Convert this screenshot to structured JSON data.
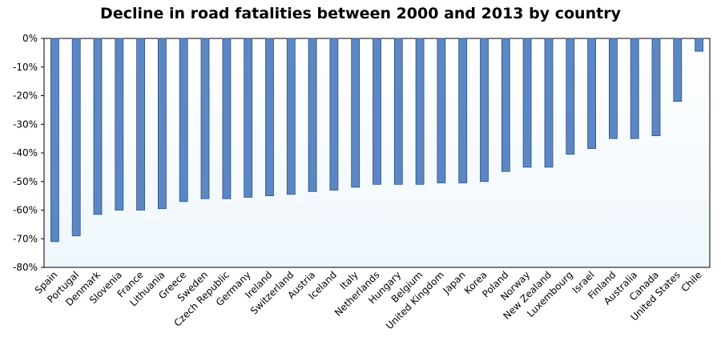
{
  "chart_data": {
    "type": "bar",
    "title": "Decline in road fatalities between 2000 and 2013 by country",
    "xlabel": "",
    "ylabel": "",
    "ylim": [
      -80,
      0
    ],
    "yticks": [
      "0%",
      "-10%",
      "-20%",
      "-30%",
      "-40%",
      "-50%",
      "-60%",
      "-70%",
      "-80%"
    ],
    "ytick_values": [
      0,
      -10,
      -20,
      -30,
      -40,
      -50,
      -60,
      -70,
      -80
    ],
    "grid": false,
    "colors": {
      "bar": "#5b87c5",
      "bar_stroke": "#2f4f7f",
      "plot_bg_top": "#ffffff",
      "plot_bg_bottom": "#eef7fc",
      "axis": "#000000"
    },
    "categories": [
      "Spain",
      "Portugal",
      "Denmark",
      "Slovenia",
      "France",
      "Lithuania",
      "Greece",
      "Sweden",
      "Czech Republic",
      "Germany",
      "Ireland",
      "Switzerland",
      "Austria",
      "Iceland",
      "Italy",
      "Netherlands",
      "Hungary",
      "Belgium",
      "United Kingdom",
      "Japan",
      "Korea",
      "Poland",
      "Norway",
      "New Zealand",
      "Luxembourg",
      "Israel",
      "Finland",
      "Australia",
      "Canada",
      "United States",
      "Chile"
    ],
    "values": [
      -71,
      -69,
      -61.5,
      -60,
      -60,
      -59.5,
      -57,
      -56,
      -56,
      -55.5,
      -55,
      -54.5,
      -53.5,
      -53,
      -52,
      -51,
      -51,
      -51,
      -50.5,
      -50.5,
      -50,
      -46.5,
      -45,
      -45,
      -40.5,
      -38.5,
      -35,
      -35,
      -34,
      -22,
      -4.5
    ]
  }
}
